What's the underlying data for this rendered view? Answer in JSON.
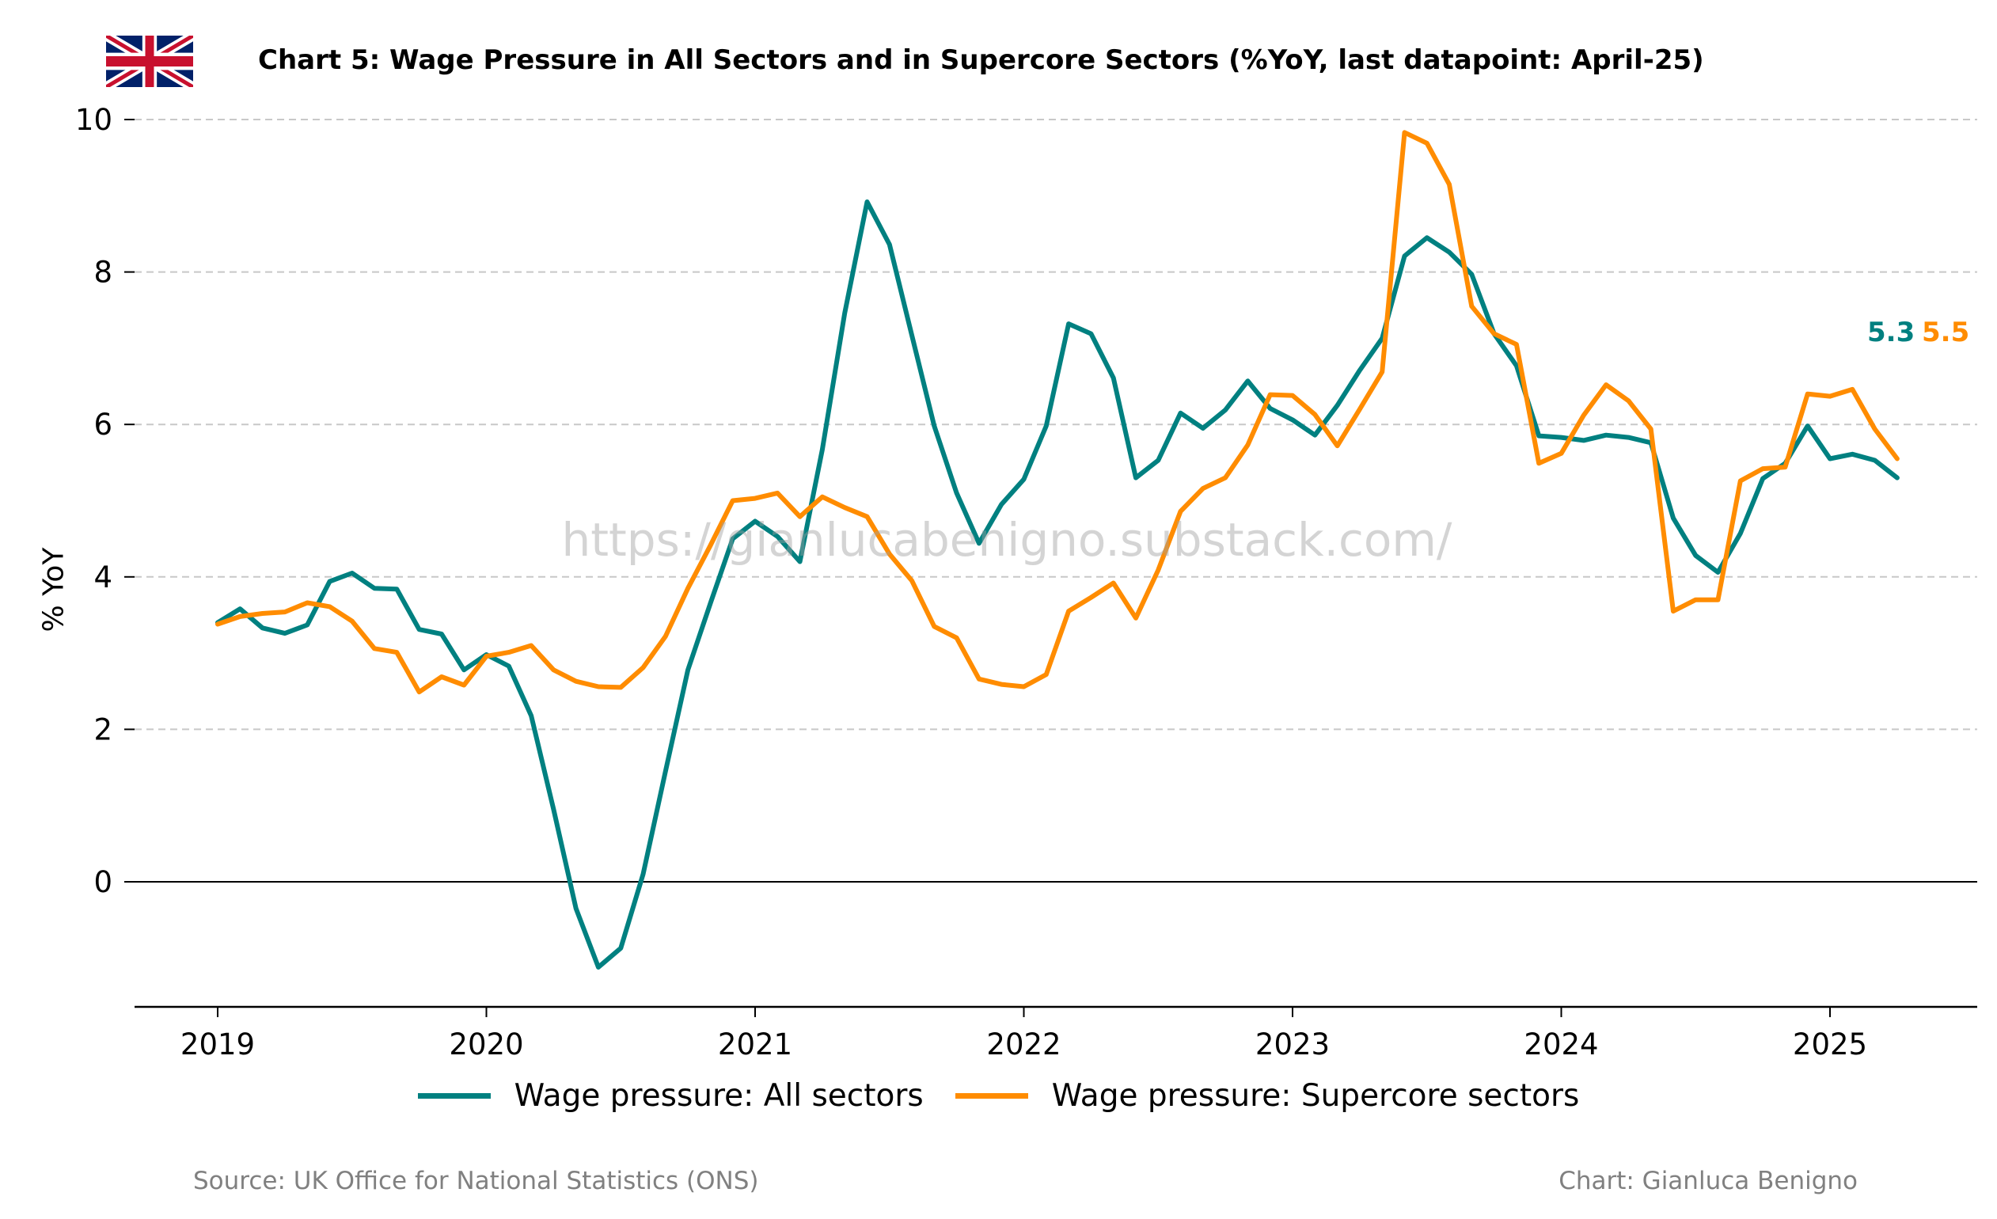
{
  "chart_data": {
    "type": "line",
    "title": "Chart 5: Wage Pressure in All Sectors and in Supercore Sectors (%YoY, last datapoint: April-25)",
    "ylabel": "% YoY",
    "xlabel": "",
    "ylim": [
      -1.65,
      10
    ],
    "xlim": [
      2018.7,
      2025.58
    ],
    "yticks": [
      0,
      2,
      4,
      6,
      8,
      10
    ],
    "xticks": [
      "2019",
      "2020",
      "2021",
      "2022",
      "2023",
      "2024",
      "2025"
    ],
    "grid": "horizontal dashed",
    "legend_position": "bottom",
    "watermark": "https://gianlucabenigno.substack.com/",
    "source": "Source: UK Office for National Statistics (ONS)",
    "credit": "Chart: Gianluca Benigno",
    "flag": "uk-flag-icon",
    "colors": {
      "all": "#008080",
      "supercore": "#FF8C00"
    },
    "end_labels": {
      "all": "5.3",
      "supercore": "5.5"
    },
    "series": [
      {
        "name": "Wage pressure: All sectors",
        "color": "#008080",
        "start": "2019-01",
        "values": [
          3.4,
          3.58,
          3.33,
          3.26,
          3.37,
          3.94,
          4.05,
          3.85,
          3.84,
          3.31,
          3.25,
          2.78,
          2.98,
          2.83,
          2.18,
          0.95,
          -0.35,
          -1.12,
          -0.87,
          0.1,
          1.45,
          2.78,
          3.65,
          4.5,
          4.73,
          4.53,
          4.2,
          5.67,
          7.46,
          8.92,
          8.36,
          7.17,
          5.98,
          5.1,
          4.44,
          4.95,
          5.28,
          5.98,
          7.32,
          7.19,
          6.61,
          5.3,
          5.53,
          6.15,
          5.95,
          6.19,
          6.57,
          6.21,
          6.06,
          5.86,
          6.25,
          6.71,
          7.13,
          8.21,
          8.45,
          8.26,
          7.97,
          7.19,
          6.77,
          5.85,
          5.83,
          5.79,
          5.86,
          5.83,
          5.76,
          4.77,
          4.28,
          4.06,
          4.57,
          5.29,
          5.49,
          5.98,
          5.55,
          5.61,
          5.53,
          5.3
        ]
      },
      {
        "name": "Wage pressure: Supercore sectors",
        "color": "#FF8C00",
        "start": "2019-01",
        "values": [
          3.38,
          3.48,
          3.52,
          3.54,
          3.66,
          3.61,
          3.42,
          3.06,
          3.01,
          2.49,
          2.69,
          2.58,
          2.96,
          3.01,
          3.1,
          2.78,
          2.63,
          2.56,
          2.55,
          2.81,
          3.22,
          3.85,
          4.41,
          5.0,
          5.03,
          5.1,
          4.79,
          5.05,
          4.91,
          4.79,
          4.3,
          3.95,
          3.35,
          3.2,
          2.66,
          2.59,
          2.56,
          2.72,
          3.55,
          3.73,
          3.92,
          3.46,
          4.09,
          4.86,
          5.16,
          5.3,
          5.73,
          6.39,
          6.38,
          6.13,
          5.72,
          6.2,
          6.69,
          9.83,
          9.69,
          9.15,
          7.55,
          7.19,
          7.05,
          5.49,
          5.62,
          6.12,
          6.52,
          6.31,
          5.94,
          3.55,
          3.7,
          3.7,
          5.26,
          5.42,
          5.44,
          6.4,
          6.37,
          6.46,
          5.94,
          5.55
        ]
      }
    ]
  }
}
